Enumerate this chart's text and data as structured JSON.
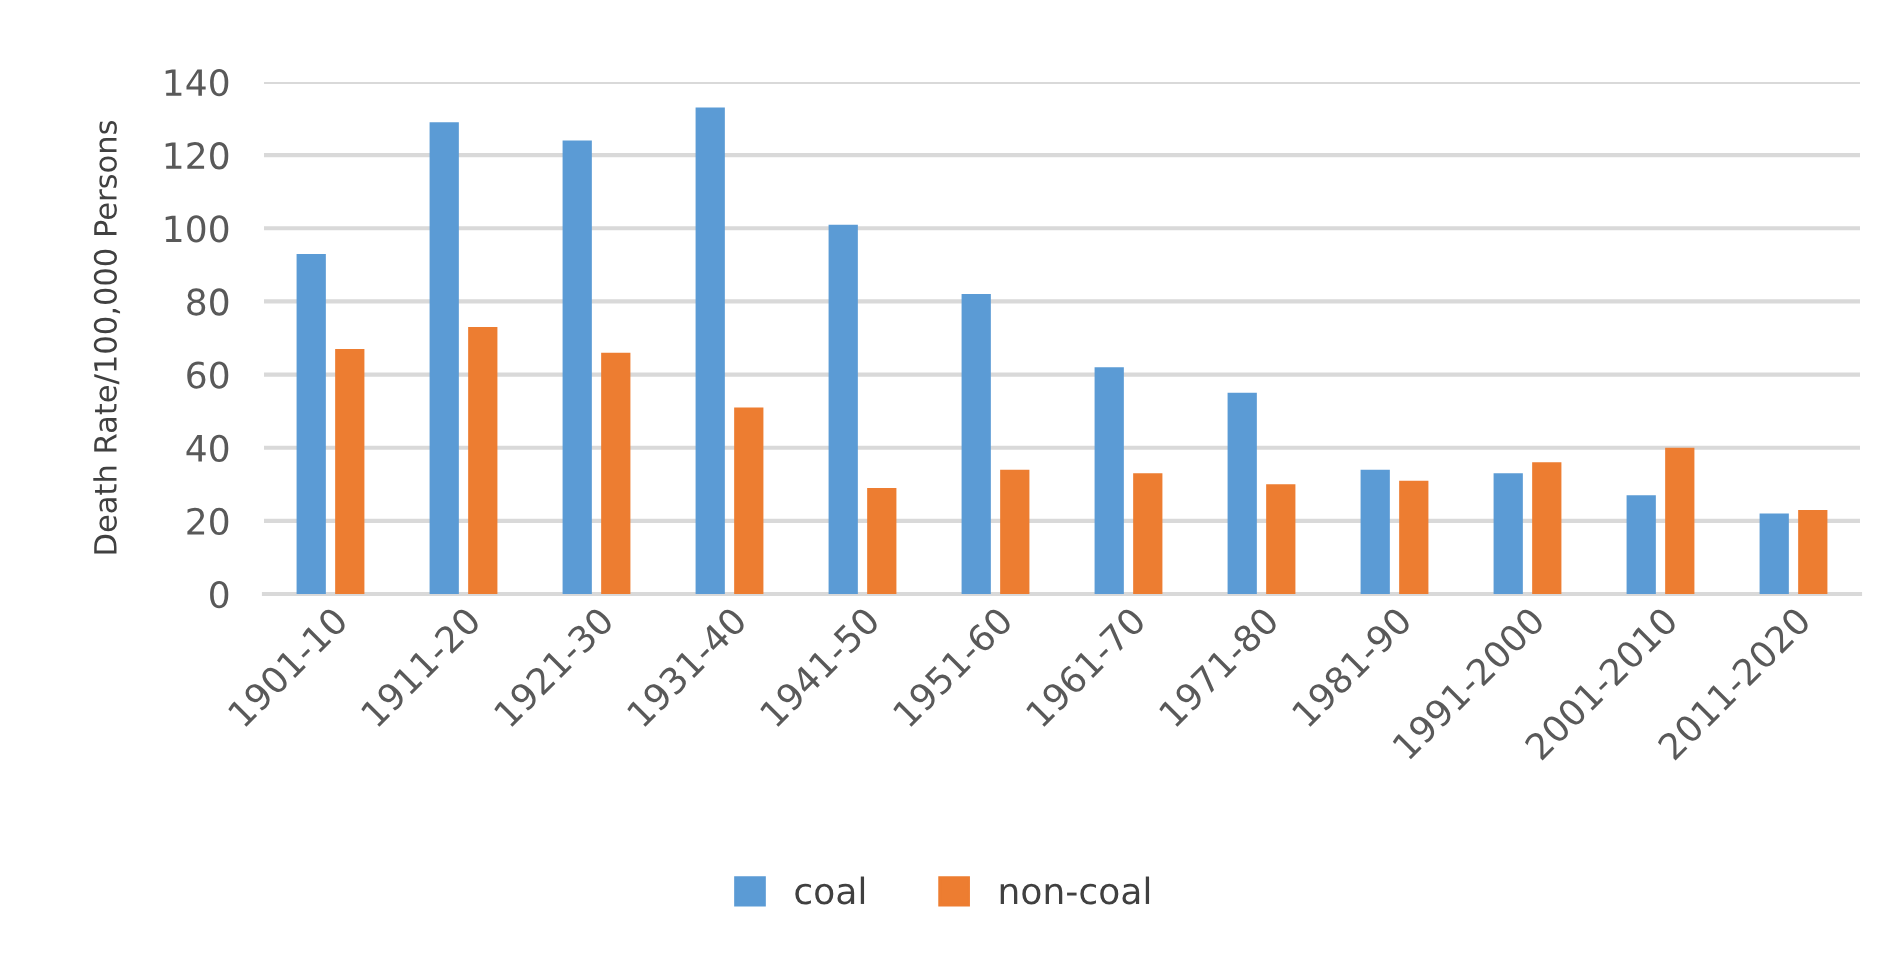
{
  "chart_data": {
    "type": "bar",
    "ylabel": "Death Rate/100,000 Persons",
    "categories": [
      "1901-10",
      "1911-20",
      "1921-30",
      "1931-40",
      "1941-50",
      "1951-60",
      "1961-70",
      "1971-80",
      "1981-90",
      "1991-2000",
      "2001-2010",
      "2011-2020"
    ],
    "series": [
      {
        "name": "coal",
        "color": "#5b9bd5",
        "values": [
          93,
          129,
          124,
          133,
          101,
          82,
          62,
          55,
          34,
          33,
          27,
          22
        ]
      },
      {
        "name": "non-coal",
        "color": "#ed7d31",
        "values": [
          67,
          73,
          66,
          51,
          29,
          34,
          33,
          30,
          31,
          36,
          40,
          23
        ]
      }
    ],
    "ylim": [
      0,
      140
    ],
    "yticks": [
      0,
      20,
      40,
      60,
      80,
      100,
      120,
      140
    ],
    "grid": "y",
    "legend": "bottom"
  }
}
